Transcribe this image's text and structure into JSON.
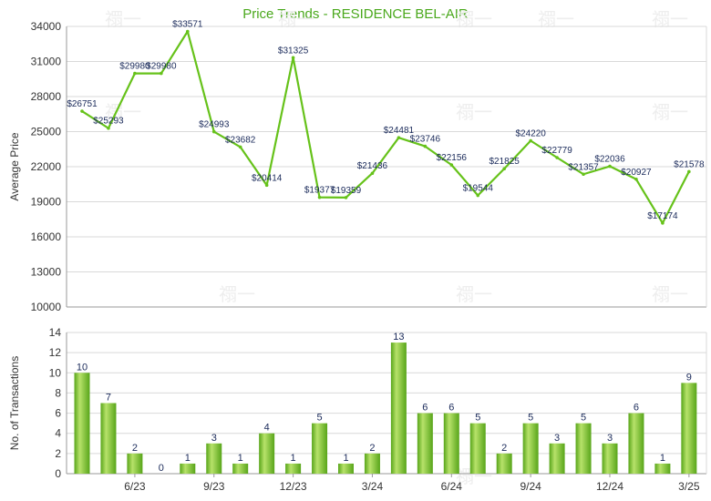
{
  "colors": {
    "title": "#4aa81c",
    "line": "#66c21a",
    "bar_light": "#b7e26a",
    "bar_dark": "#58a51a",
    "grid": "#d9d9d9",
    "axis": "#999999"
  },
  "watermark": "禤一",
  "chart_data": [
    {
      "type": "line",
      "title": "Price Trends - RESIDENCE BEL-AIR",
      "ylabel": "Average Price",
      "ylim": [
        10000,
        34000
      ],
      "yticks": [
        "10000",
        "13000",
        "16000",
        "19000",
        "22000",
        "25000",
        "28000",
        "31000",
        "34000"
      ],
      "grid": true,
      "x": [
        0,
        1,
        2,
        3,
        4,
        5,
        6,
        7,
        8,
        9,
        10,
        11,
        12,
        13,
        14,
        15,
        16,
        17,
        18,
        19,
        20,
        21,
        22,
        23
      ],
      "values": [
        26751,
        25293,
        29980,
        29980,
        33571,
        24993,
        23682,
        20414,
        31325,
        19377,
        19359,
        21436,
        24481,
        23746,
        22156,
        19544,
        21825,
        24220,
        22779,
        21357,
        22036,
        20927,
        17174,
        21578
      ],
      "labels": [
        "$26751",
        "$25293",
        "$29980",
        "$29980",
        "$33571",
        "$24993",
        "$23682",
        "$20414",
        "$31325",
        "$19377",
        "$19359",
        "$21436",
        "$24481",
        "$23746",
        "$22156",
        "$19544",
        "$21825",
        "$24220",
        "$22779",
        "$21357",
        "$22036",
        "$20927",
        "$17174",
        "$21578"
      ]
    },
    {
      "type": "bar",
      "ylabel": "No. of Transactions",
      "ylim": [
        0,
        14
      ],
      "yticks": [
        "0",
        "2",
        "4",
        "6",
        "8",
        "10",
        "12",
        "14"
      ],
      "grid": true,
      "x": [
        0,
        1,
        2,
        3,
        4,
        5,
        6,
        7,
        8,
        9,
        10,
        11,
        12,
        13,
        14,
        15,
        16,
        17,
        18,
        19,
        20,
        21,
        22,
        23
      ],
      "values": [
        10,
        7,
        2,
        0,
        1,
        3,
        1,
        4,
        1,
        5,
        1,
        2,
        13,
        6,
        6,
        5,
        2,
        5,
        3,
        5,
        3,
        6,
        1,
        9
      ],
      "xtick_positions": [
        2,
        5,
        8,
        11,
        14,
        17,
        20,
        23
      ],
      "xtick_labels": [
        "6/23",
        "9/23",
        "12/23",
        "3/24",
        "6/24",
        "9/24",
        "12/24",
        "3/25"
      ]
    }
  ]
}
